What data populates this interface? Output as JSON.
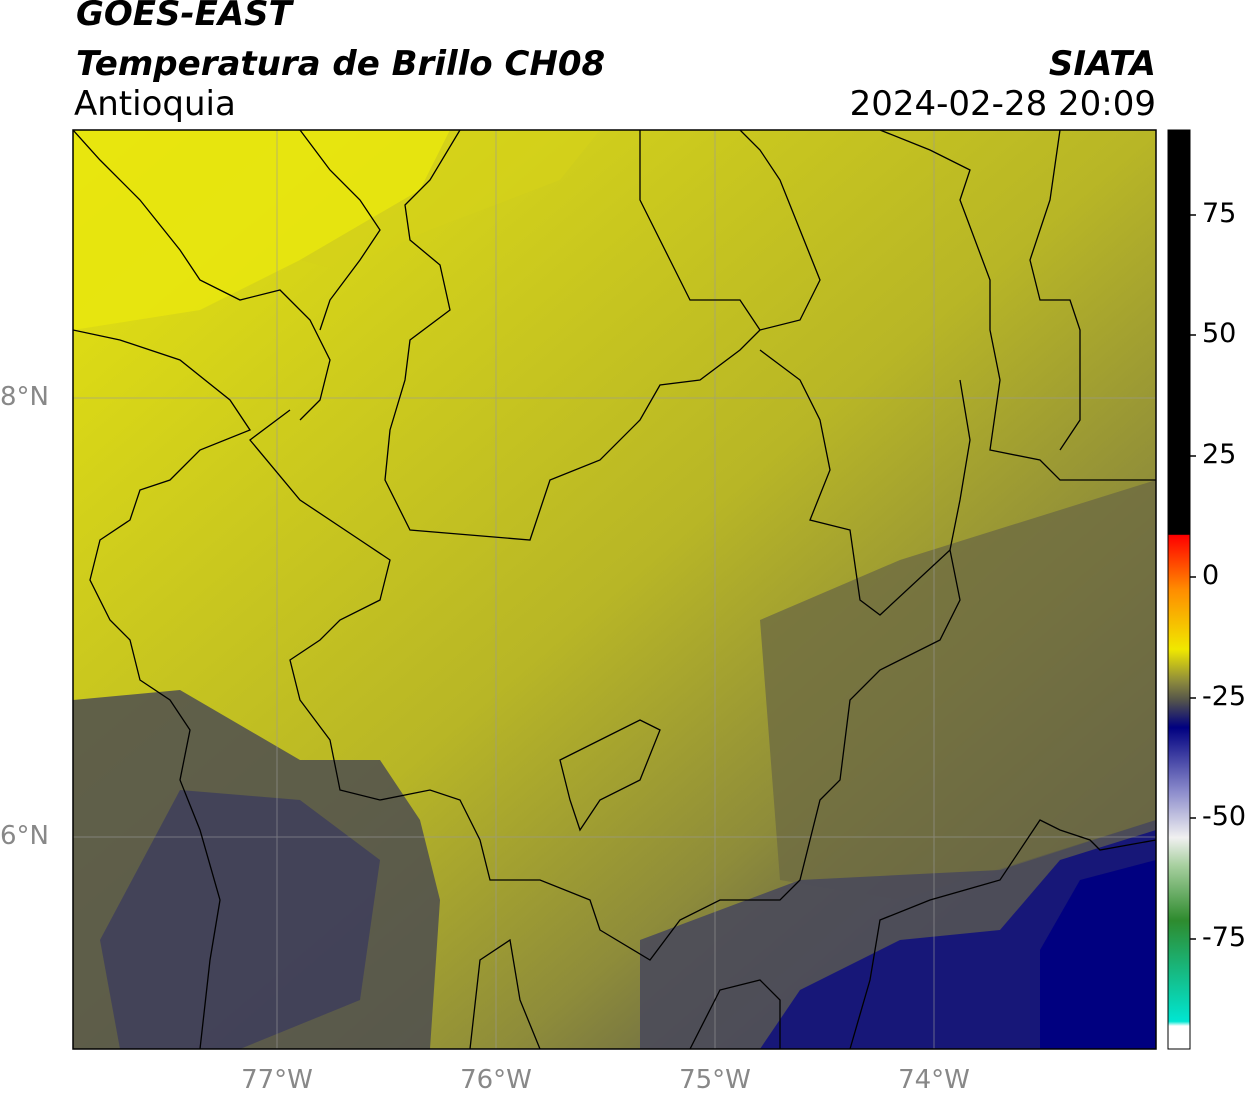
{
  "header": {
    "satellite": "GOES-EAST",
    "product": "Temperatura de Brillo CH08",
    "region": "Antioquia",
    "brand": "SIATA",
    "datetime": "2024-02-28 20:09"
  },
  "map": {
    "lat_labels": [
      "8°N",
      "6°N"
    ],
    "lon_labels": [
      "77°W",
      "76°W",
      "75°W",
      "74°W"
    ],
    "gridlines": true
  },
  "colorbar": {
    "ticks": [
      "75",
      "50",
      "25",
      "0",
      "-25",
      "-50",
      "-75"
    ],
    "colors": {
      "black_band": "#000000",
      "warm_top": "#ff0000",
      "orange": "#ff8c00",
      "yellow": "#f0e800",
      "olive": "#8c8a3c",
      "gray": "#55554a",
      "navy": "#000080",
      "light_blue": "#8c8ccc",
      "white": "#f0f0f0",
      "green": "#2e8b2e",
      "cyan": "#00e6d2"
    }
  }
}
